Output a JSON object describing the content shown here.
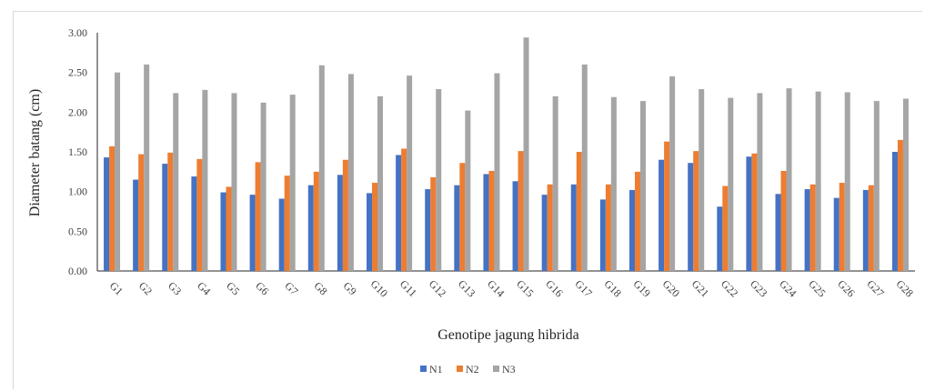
{
  "chart_data": {
    "type": "bar",
    "title": "",
    "xlabel": "Genotipe jagung hibrida",
    "ylabel": "Diameter batang (cm)",
    "ylim": [
      0,
      3
    ],
    "yticks": [
      "0.00",
      "0.50",
      "1.00",
      "1.50",
      "2.00",
      "2.50",
      "3.00"
    ],
    "grid": false,
    "legend_position": "bottom",
    "categories": [
      "G1",
      "G2",
      "G3",
      "G4",
      "G5",
      "G6",
      "G7",
      "G8",
      "G9",
      "G10",
      "G11",
      "G12",
      "G13",
      "G14",
      "G15",
      "G16",
      "G17",
      "G18",
      "G19",
      "G20",
      "G21",
      "G22",
      "G23",
      "G24",
      "G25",
      "G26",
      "G27",
      "G28"
    ],
    "series": [
      {
        "name": "N1",
        "color": "#4472c4",
        "values": [
          1.43,
          1.15,
          1.35,
          1.19,
          0.99,
          0.96,
          0.91,
          1.08,
          1.21,
          0.98,
          1.46,
          1.03,
          1.08,
          1.22,
          1.13,
          0.96,
          1.09,
          0.9,
          1.02,
          1.4,
          1.36,
          0.81,
          1.44,
          0.97,
          1.03,
          0.92,
          1.02,
          1.5
        ]
      },
      {
        "name": "N2",
        "color": "#ed7d31",
        "values": [
          1.57,
          1.47,
          1.49,
          1.41,
          1.06,
          1.37,
          1.2,
          1.25,
          1.4,
          1.11,
          1.54,
          1.18,
          1.36,
          1.26,
          1.51,
          1.09,
          1.5,
          1.09,
          1.25,
          1.63,
          1.51,
          1.07,
          1.48,
          1.26,
          1.09,
          1.11,
          1.08,
          1.65
        ]
      },
      {
        "name": "N3",
        "color": "#a5a5a5",
        "values": [
          2.5,
          2.6,
          2.24,
          2.28,
          2.24,
          2.12,
          2.22,
          2.59,
          2.48,
          2.2,
          2.46,
          2.29,
          2.02,
          2.49,
          2.94,
          2.2,
          2.6,
          2.19,
          2.14,
          2.45,
          2.29,
          2.18,
          2.24,
          2.3,
          2.26,
          2.25,
          2.14,
          2.17
        ]
      }
    ]
  }
}
